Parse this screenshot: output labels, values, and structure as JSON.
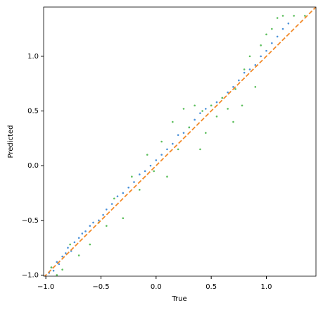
{
  "chart_data": {
    "type": "scatter",
    "xlabel": "True",
    "ylabel": "Predicted",
    "xlim": [
      -1.02,
      1.45
    ],
    "ylim": [
      -1.01,
      1.45
    ],
    "xticks": [
      {
        "value": -1.0,
        "label": "−1.0"
      },
      {
        "value": -0.5,
        "label": "−0.5"
      },
      {
        "value": 0.0,
        "label": "0.0"
      },
      0.5,
      {
        "value": 1.0,
        "label": "1.0"
      }
    ],
    "yticks": [
      {
        "value": -1.0,
        "label": "−1.0"
      },
      {
        "value": -0.5,
        "label": "−0.5"
      },
      {
        "value": 0.0,
        "label": "0.0"
      },
      0.5,
      {
        "value": 1.0,
        "label": "1.0"
      }
    ],
    "series": [
      {
        "color": "#4a90d9",
        "x": [
          -0.97,
          -0.95,
          -0.93,
          -0.9,
          -0.88,
          -0.85,
          -0.82,
          -0.8,
          -0.77,
          -0.74,
          -0.7,
          -0.67,
          -0.64,
          -0.6,
          -0.57,
          -0.52,
          -0.48,
          -0.45,
          -0.4,
          -0.35,
          -0.3,
          -0.25,
          -0.2,
          -0.15,
          -0.1,
          -0.05,
          0.0,
          0.05,
          0.1,
          0.15,
          0.2,
          0.25,
          0.3,
          0.35,
          0.4,
          0.45,
          0.5,
          0.55,
          0.6,
          0.65,
          0.7,
          0.75,
          0.8,
          0.85,
          0.9,
          0.95,
          1.0,
          1.05,
          1.1,
          1.15,
          1.2
        ],
        "values": [
          -0.98,
          -0.93,
          -0.96,
          -0.88,
          -0.9,
          -0.83,
          -0.8,
          -0.75,
          -0.78,
          -0.7,
          -0.66,
          -0.62,
          -0.6,
          -0.55,
          -0.52,
          -0.5,
          -0.45,
          -0.4,
          -0.35,
          -0.28,
          -0.25,
          -0.2,
          -0.15,
          -0.08,
          -0.05,
          0.0,
          0.05,
          0.1,
          0.15,
          0.2,
          0.28,
          0.3,
          0.35,
          0.42,
          0.48,
          0.52,
          0.55,
          0.58,
          0.62,
          0.67,
          0.72,
          0.78,
          0.85,
          0.88,
          0.92,
          1.0,
          1.05,
          1.12,
          1.18,
          1.25,
          1.3
        ]
      },
      {
        "color": "#5cbf5c",
        "x": [
          -0.95,
          -0.9,
          -0.85,
          -0.78,
          -0.7,
          -0.6,
          -0.52,
          -0.45,
          -0.38,
          -0.3,
          -0.22,
          -0.15,
          -0.08,
          -0.02,
          0.05,
          0.1,
          0.15,
          0.2,
          0.25,
          0.3,
          0.35,
          0.4,
          0.42,
          0.45,
          0.5,
          0.55,
          0.6,
          0.65,
          0.7,
          0.72,
          0.78,
          0.8,
          0.85,
          0.9,
          0.95,
          1.0,
          1.05,
          1.1,
          1.15,
          1.25,
          1.35
        ],
        "values": [
          -0.93,
          -1.0,
          -0.95,
          -0.72,
          -0.82,
          -0.72,
          -0.52,
          -0.55,
          -0.3,
          -0.48,
          -0.1,
          -0.22,
          0.1,
          -0.05,
          0.22,
          -0.1,
          0.4,
          0.15,
          0.52,
          0.35,
          0.55,
          0.15,
          0.5,
          0.3,
          0.55,
          0.45,
          0.62,
          0.52,
          0.4,
          0.7,
          0.55,
          0.88,
          1.0,
          0.72,
          1.1,
          1.2,
          1.25,
          1.35,
          1.37,
          1.37,
          1.37
        ]
      }
    ],
    "reference_line": {
      "color": "#f28a2a",
      "x": [
        -1.02,
        1.45
      ],
      "values": [
        -1.02,
        1.45
      ]
    }
  }
}
